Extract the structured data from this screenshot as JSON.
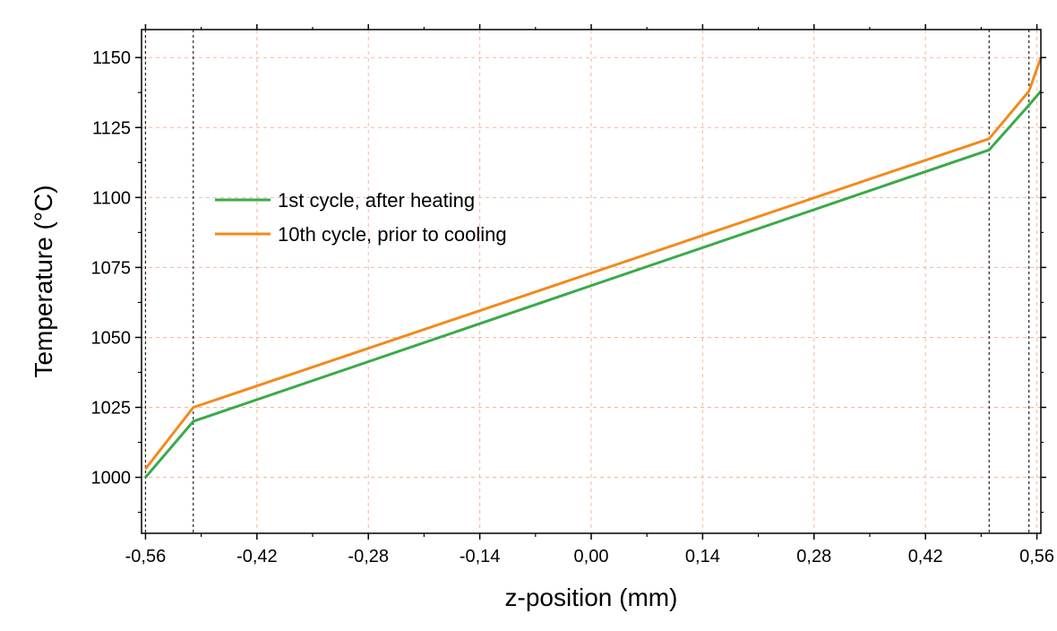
{
  "chart_data": {
    "type": "line",
    "title": "",
    "xlabel": "z-position (mm)",
    "ylabel": "Temperature (°C)",
    "xlim": [
      -0.565,
      0.565
    ],
    "ylim": [
      980,
      1160
    ],
    "x_ticks": [
      -0.56,
      -0.42,
      -0.28,
      -0.14,
      0.0,
      0.14,
      0.28,
      0.42,
      0.56
    ],
    "x_tick_labels": [
      "-0,56",
      "-0,42",
      "-0,28",
      "-0,14",
      "0,00",
      "0,14",
      "0,28",
      "0,42",
      "0,56"
    ],
    "y_ticks": [
      1000,
      1025,
      1050,
      1075,
      1100,
      1125,
      1150
    ],
    "y_tick_labels": [
      "1000",
      "1025",
      "1050",
      "1075",
      "1100",
      "1125",
      "1150"
    ],
    "grid": true,
    "grid_color": "#f2b8a0",
    "reference_lines_x": [
      -0.56,
      -0.5,
      0.5,
      0.55
    ],
    "legend_position": "upper-left",
    "series": [
      {
        "name": "1st cycle, after heating",
        "color": "#3aaa4a",
        "x": [
          -0.56,
          -0.5,
          0.5,
          0.55,
          0.565
        ],
        "y": [
          1000,
          1020,
          1117,
          1133,
          1138
        ]
      },
      {
        "name": "10th cycle, prior to cooling",
        "color": "#f28a1c",
        "x": [
          -0.56,
          -0.5,
          0.5,
          0.55,
          0.565
        ],
        "y": [
          1003,
          1025,
          1121,
          1138,
          1150
        ]
      }
    ]
  }
}
